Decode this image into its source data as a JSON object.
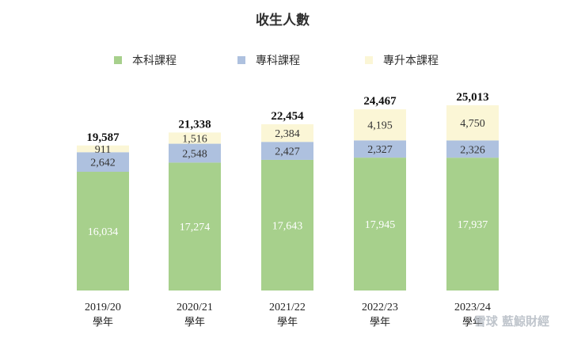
{
  "chart_data": {
    "type": "stacked-bar",
    "title": "收生人數",
    "categories": [
      "2019/20",
      "2020/21",
      "2021/22",
      "2022/23",
      "2023/24"
    ],
    "category_suffix": "學年",
    "series": [
      {
        "name": "本科課程",
        "color": "#a7d08c",
        "values": [
          16034,
          17274,
          17643,
          17945,
          17937
        ]
      },
      {
        "name": "專科課程",
        "color": "#aec1df",
        "values": [
          2642,
          2548,
          2427,
          2327,
          2326
        ]
      },
      {
        "name": "專升本課程",
        "color": "#fbf6d6",
        "values": [
          911,
          1516,
          2384,
          4195,
          4750
        ]
      }
    ],
    "totals": [
      19587,
      21338,
      22454,
      24467,
      25013
    ],
    "ylim": [
      0,
      25013
    ],
    "legend_position": "top"
  },
  "watermark": {
    "text": "雪球 藍鯨財經"
  }
}
